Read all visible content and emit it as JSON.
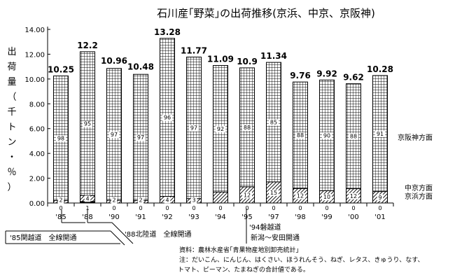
{
  "chart_data": {
    "type": "bar",
    "title": "石川産｢野菜｣の出荷推移(京浜、中京、京阪神)",
    "ylabel_chars": [
      "出",
      "荷",
      "量",
      "（",
      "千",
      "ト",
      "ン",
      "・",
      "％",
      "）"
    ],
    "ylim": [
      0,
      14
    ],
    "yticks": [
      "0.00",
      "2.00",
      "4.00",
      "6.00",
      "8.00",
      "10.00",
      "12.00",
      "14.00"
    ],
    "categories": [
      "'85",
      "'88",
      "'90",
      "'91",
      "'92",
      "'93",
      "'94",
      "'95",
      "'97",
      "'98",
      "'99",
      "'00",
      "'01"
    ],
    "totals": [
      10.25,
      12.2,
      10.96,
      10.48,
      13.28,
      11.77,
      11.09,
      10.9,
      11.34,
      9.76,
      9.92,
      9.62,
      10.28
    ],
    "total_labels": [
      "10.25",
      "12.2",
      "10.96",
      "10.48",
      "13.28",
      "11.77",
      "11.09",
      "10.9",
      "11.34",
      "9.76",
      "9.92",
      "9.62",
      "10.28"
    ],
    "series": [
      {
        "name": "京浜方面",
        "pattern": "solid",
        "percent": [
          0,
          1,
          0,
          0,
          0,
          0,
          0,
          0,
          0,
          0,
          0,
          0,
          0
        ],
        "labels": [
          "0",
          "1",
          "0",
          "0",
          "0",
          "0",
          "0",
          "0",
          "0",
          "0",
          "0",
          "0",
          "0"
        ]
      },
      {
        "name": "中京方面",
        "pattern": "hatch",
        "percent": [
          2,
          4,
          2,
          2,
          4,
          3,
          8,
          12,
          15,
          12,
          10,
          12,
          9
        ],
        "labels": [
          "2",
          "4",
          "2",
          "2",
          "4",
          "3",
          "",
          "12",
          "15",
          "12",
          "10",
          "12",
          "9"
        ]
      },
      {
        "name": "京阪神方面",
        "pattern": "grid",
        "percent": [
          98,
          95,
          97,
          97,
          96,
          97,
          92,
          88,
          85,
          88,
          90,
          88,
          91
        ],
        "labels": [
          "98",
          "95",
          "97",
          "97",
          "96",
          "97",
          "92",
          "88",
          "85",
          "88",
          "90",
          "88",
          "91"
        ]
      }
    ],
    "events": [
      {
        "text": "'85関越道　全線開通"
      },
      {
        "text": "'88北陸道　全線開通"
      },
      {
        "text": "'94磐越道"
      },
      {
        "text": "新潟～安田開通"
      }
    ],
    "notes": [
      "資料：農林水産省｢青果物産地別卸売統計｣",
      "注：だいこん、にんじん、はくさい、ほうれんそう、ねぎ、レタス、きゅうり、なす、",
      "トマト、ピーマン、たまねぎの合計値である。"
    ],
    "grid": false,
    "legend": "right"
  }
}
